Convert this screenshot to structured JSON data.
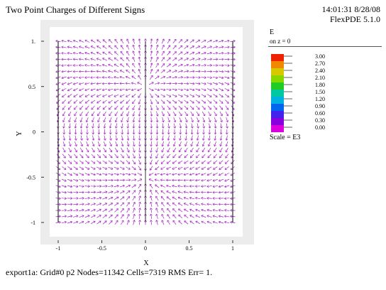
{
  "header": {
    "title": "Two Point Charges of Different Signs",
    "timestamp": "14:01:31 8/28/08",
    "software": "FlexPDE 5.1.0"
  },
  "footer": {
    "status": "export1a:  Grid#0  p2  Nodes=11342 Cells=7319 RMS Err= 1."
  },
  "legend": {
    "variable": "E",
    "slice": "on z = 0",
    "scale": "Scale = E3",
    "levels": [
      "3.00",
      "2.70",
      "2.40",
      "2.10",
      "1.80",
      "1.50",
      "1.20",
      "0.90",
      "0.60",
      "0.30",
      "0.00"
    ],
    "colors": [
      "#ee2200",
      "#f08800",
      "#d8c800",
      "#88d800",
      "#22cc22",
      "#00c8a0",
      "#00b0e0",
      "#0066ee",
      "#4422ee",
      "#8800dd",
      "#dd00dd"
    ]
  },
  "chart_data": {
    "type": "vector-field",
    "title": "Two Point Charges of Different Signs",
    "xlabel": "X",
    "ylabel": "Y",
    "xlim": [
      -1.05,
      1.05
    ],
    "ylim": [
      -1.05,
      1.05
    ],
    "x_ticks": [
      "-1",
      "-0.5",
      "0",
      "0.5",
      "1"
    ],
    "y_ticks": [
      "1.",
      "0.5",
      "0",
      "-0.5",
      "-1"
    ],
    "domain": {
      "x": [
        -1,
        1
      ],
      "y": [
        -1,
        1
      ]
    },
    "charges": [
      {
        "x": 0,
        "y": 0.5,
        "sign": 1
      },
      {
        "x": 0,
        "y": -0.5,
        "sign": -1
      }
    ],
    "arrow_color": "#a020c0",
    "boundary_color": "#000000"
  }
}
